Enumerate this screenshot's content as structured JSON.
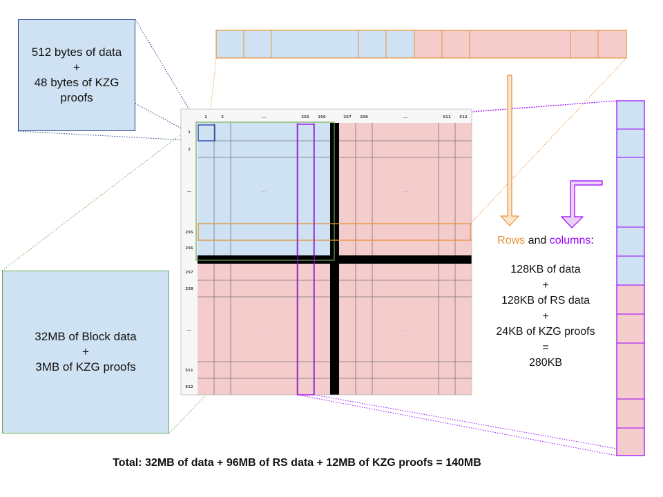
{
  "cell_box": {
    "lines": [
      "512 bytes of data",
      "+",
      "48 bytes of KZG",
      "proofs"
    ]
  },
  "block_box": {
    "lines": [
      "32MB of Block data",
      "+",
      "3MB of KZG proofs"
    ]
  },
  "matrix": {
    "column_headers": [
      "1",
      "2",
      "...",
      "255",
      "256",
      "257",
      "258",
      "...",
      "511",
      "512"
    ],
    "row_headers": [
      "1",
      "2",
      "...",
      "255",
      "256",
      "257",
      "258",
      "...",
      "511",
      "512"
    ],
    "quadrant_ellipsis": "..."
  },
  "rows_columns": {
    "rows_word": "Rows",
    "and_word": " and ",
    "columns_word": "columns",
    "colon": ":",
    "lines": [
      "128KB of data",
      "+",
      "128KB of RS data",
      "+",
      "24KB of KZG proofs",
      "=",
      "280KB"
    ]
  },
  "total": "Total: 32MB of data + 96MB of RS data + 12MB of KZG proofs = 140MB",
  "colors": {
    "data_blue": "#cfe2f3",
    "rs_red": "#f4cccc",
    "row_orange": "#e69138",
    "column_purple": "#9900ff",
    "block_green": "#6aa84f",
    "cell_navy": "#1a3a8a",
    "arrow_orange_fill": "#fce5cd",
    "arrow_purple_fill": "#ead1f5"
  }
}
